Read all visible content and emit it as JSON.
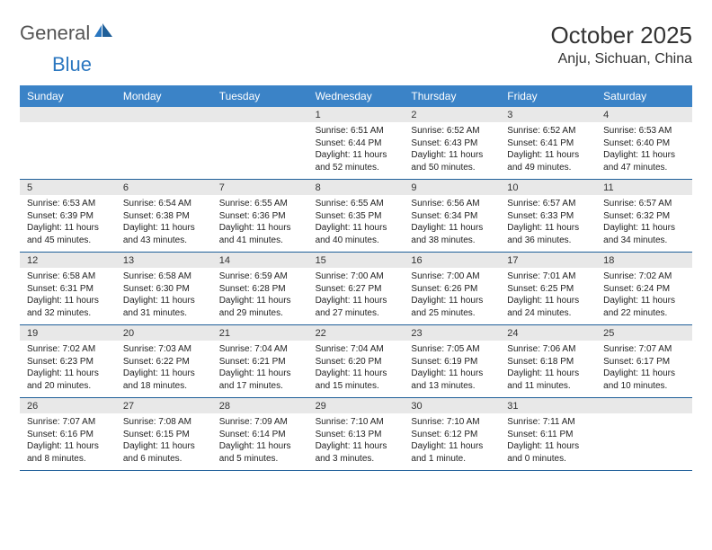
{
  "logo": {
    "word1": "General",
    "word2": "Blue"
  },
  "title": "October 2025",
  "location": "Anju, Sichuan, China",
  "colors": {
    "header_bg": "#3b83c7",
    "header_text": "#ffffff",
    "daynum_bg": "#e8e8e8",
    "divider": "#1f5f99",
    "body_text": "#222222",
    "page_bg": "#ffffff"
  },
  "daysOfWeek": [
    "Sunday",
    "Monday",
    "Tuesday",
    "Wednesday",
    "Thursday",
    "Friday",
    "Saturday"
  ],
  "weeks": [
    [
      {
        "n": "",
        "sr": "",
        "ss": "",
        "dl": ""
      },
      {
        "n": "",
        "sr": "",
        "ss": "",
        "dl": ""
      },
      {
        "n": "",
        "sr": "",
        "ss": "",
        "dl": ""
      },
      {
        "n": "1",
        "sr": "6:51 AM",
        "ss": "6:44 PM",
        "dl": "11 hours and 52 minutes."
      },
      {
        "n": "2",
        "sr": "6:52 AM",
        "ss": "6:43 PM",
        "dl": "11 hours and 50 minutes."
      },
      {
        "n": "3",
        "sr": "6:52 AM",
        "ss": "6:41 PM",
        "dl": "11 hours and 49 minutes."
      },
      {
        "n": "4",
        "sr": "6:53 AM",
        "ss": "6:40 PM",
        "dl": "11 hours and 47 minutes."
      }
    ],
    [
      {
        "n": "5",
        "sr": "6:53 AM",
        "ss": "6:39 PM",
        "dl": "11 hours and 45 minutes."
      },
      {
        "n": "6",
        "sr": "6:54 AM",
        "ss": "6:38 PM",
        "dl": "11 hours and 43 minutes."
      },
      {
        "n": "7",
        "sr": "6:55 AM",
        "ss": "6:36 PM",
        "dl": "11 hours and 41 minutes."
      },
      {
        "n": "8",
        "sr": "6:55 AM",
        "ss": "6:35 PM",
        "dl": "11 hours and 40 minutes."
      },
      {
        "n": "9",
        "sr": "6:56 AM",
        "ss": "6:34 PM",
        "dl": "11 hours and 38 minutes."
      },
      {
        "n": "10",
        "sr": "6:57 AM",
        "ss": "6:33 PM",
        "dl": "11 hours and 36 minutes."
      },
      {
        "n": "11",
        "sr": "6:57 AM",
        "ss": "6:32 PM",
        "dl": "11 hours and 34 minutes."
      }
    ],
    [
      {
        "n": "12",
        "sr": "6:58 AM",
        "ss": "6:31 PM",
        "dl": "11 hours and 32 minutes."
      },
      {
        "n": "13",
        "sr": "6:58 AM",
        "ss": "6:30 PM",
        "dl": "11 hours and 31 minutes."
      },
      {
        "n": "14",
        "sr": "6:59 AM",
        "ss": "6:28 PM",
        "dl": "11 hours and 29 minutes."
      },
      {
        "n": "15",
        "sr": "7:00 AM",
        "ss": "6:27 PM",
        "dl": "11 hours and 27 minutes."
      },
      {
        "n": "16",
        "sr": "7:00 AM",
        "ss": "6:26 PM",
        "dl": "11 hours and 25 minutes."
      },
      {
        "n": "17",
        "sr": "7:01 AM",
        "ss": "6:25 PM",
        "dl": "11 hours and 24 minutes."
      },
      {
        "n": "18",
        "sr": "7:02 AM",
        "ss": "6:24 PM",
        "dl": "11 hours and 22 minutes."
      }
    ],
    [
      {
        "n": "19",
        "sr": "7:02 AM",
        "ss": "6:23 PM",
        "dl": "11 hours and 20 minutes."
      },
      {
        "n": "20",
        "sr": "7:03 AM",
        "ss": "6:22 PM",
        "dl": "11 hours and 18 minutes."
      },
      {
        "n": "21",
        "sr": "7:04 AM",
        "ss": "6:21 PM",
        "dl": "11 hours and 17 minutes."
      },
      {
        "n": "22",
        "sr": "7:04 AM",
        "ss": "6:20 PM",
        "dl": "11 hours and 15 minutes."
      },
      {
        "n": "23",
        "sr": "7:05 AM",
        "ss": "6:19 PM",
        "dl": "11 hours and 13 minutes."
      },
      {
        "n": "24",
        "sr": "7:06 AM",
        "ss": "6:18 PM",
        "dl": "11 hours and 11 minutes."
      },
      {
        "n": "25",
        "sr": "7:07 AM",
        "ss": "6:17 PM",
        "dl": "11 hours and 10 minutes."
      }
    ],
    [
      {
        "n": "26",
        "sr": "7:07 AM",
        "ss": "6:16 PM",
        "dl": "11 hours and 8 minutes."
      },
      {
        "n": "27",
        "sr": "7:08 AM",
        "ss": "6:15 PM",
        "dl": "11 hours and 6 minutes."
      },
      {
        "n": "28",
        "sr": "7:09 AM",
        "ss": "6:14 PM",
        "dl": "11 hours and 5 minutes."
      },
      {
        "n": "29",
        "sr": "7:10 AM",
        "ss": "6:13 PM",
        "dl": "11 hours and 3 minutes."
      },
      {
        "n": "30",
        "sr": "7:10 AM",
        "ss": "6:12 PM",
        "dl": "11 hours and 1 minute."
      },
      {
        "n": "31",
        "sr": "7:11 AM",
        "ss": "6:11 PM",
        "dl": "11 hours and 0 minutes."
      },
      {
        "n": "",
        "sr": "",
        "ss": "",
        "dl": ""
      }
    ]
  ],
  "labels": {
    "sunrise": "Sunrise:",
    "sunset": "Sunset:",
    "daylight": "Daylight:"
  }
}
